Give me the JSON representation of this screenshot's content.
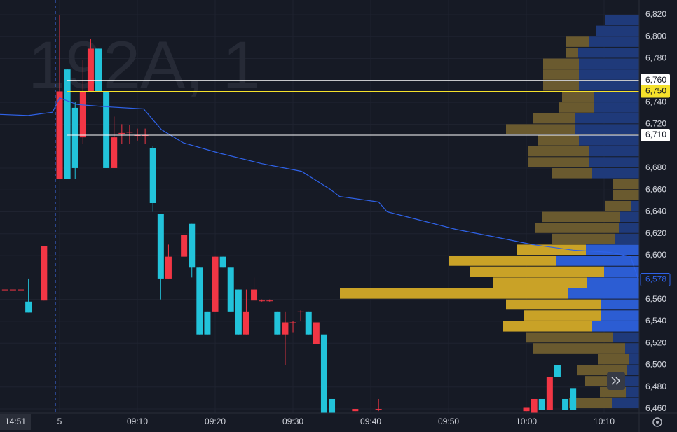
{
  "chart_data": {
    "type": "candlestick",
    "watermark": "192A, 1",
    "time_label": "14:51",
    "xlim": [
      -7.66,
      74.5
    ],
    "ylim": [
      6456.2,
      6833.4
    ],
    "grid": true,
    "xticks": [
      {
        "value": 0,
        "label": "5"
      },
      {
        "value": 10,
        "label": "09:10"
      },
      {
        "value": 20,
        "label": "09:20"
      },
      {
        "value": 30,
        "label": "09:30"
      },
      {
        "value": 40,
        "label": "09:40"
      },
      {
        "value": 50,
        "label": "09:50"
      },
      {
        "value": 60,
        "label": "10:00"
      },
      {
        "value": 70,
        "label": "10:10"
      }
    ],
    "yticks": [
      {
        "value": 6820,
        "label": "6,820"
      },
      {
        "value": 6800,
        "label": "6,800"
      },
      {
        "value": 6780,
        "label": "6,780"
      },
      {
        "value": 6740,
        "label": "6,740"
      },
      {
        "value": 6720,
        "label": "6,720"
      },
      {
        "value": 6680,
        "label": "6,680"
      },
      {
        "value": 6660,
        "label": "6,660"
      },
      {
        "value": 6640,
        "label": "6,640"
      },
      {
        "value": 6620,
        "label": "6,620"
      },
      {
        "value": 6600,
        "label": "6,600"
      },
      {
        "value": 6560,
        "label": "6,560"
      },
      {
        "value": 6540,
        "label": "6,540"
      },
      {
        "value": 6520,
        "label": "6,520"
      },
      {
        "value": 6500,
        "label": "6,500"
      },
      {
        "value": 6480,
        "label": "6,480"
      },
      {
        "value": 6460,
        "label": "6,460"
      }
    ],
    "up_color": "#f23645",
    "down_color": "#22c3da",
    "candles": [
      {
        "time": -7,
        "open": 6569,
        "high": 6569,
        "low": 6569,
        "close": 6569
      },
      {
        "time": -6,
        "open": 6569,
        "high": 6569,
        "low": 6569,
        "close": 6569
      },
      {
        "time": -5,
        "open": 6569,
        "high": 6569,
        "low": 6569,
        "close": 6569
      },
      {
        "time": -4,
        "open": 6558,
        "high": 6579,
        "low": 6548,
        "close": 6548
      },
      {
        "time": -2,
        "open": 6559,
        "high": 6609,
        "low": 6559,
        "close": 6609
      },
      {
        "time": 0,
        "open": 6670,
        "high": 6820,
        "low": 6670,
        "close": 6750
      },
      {
        "time": 1,
        "open": 6770,
        "high": 6770,
        "low": 6670,
        "close": 6670
      },
      {
        "time": 2,
        "open": 6735,
        "high": 6740,
        "low": 6670,
        "close": 6680
      },
      {
        "time": 3,
        "open": 6708,
        "high": 6779,
        "low": 6702,
        "close": 6750
      },
      {
        "time": 4,
        "open": 6750,
        "high": 6798,
        "low": 6750,
        "close": 6789
      },
      {
        "time": 5,
        "open": 6789,
        "high": 6789,
        "low": 6750,
        "close": 6750
      },
      {
        "time": 6,
        "open": 6750,
        "high": 6750,
        "low": 6680,
        "close": 6680
      },
      {
        "time": 7,
        "open": 6680,
        "high": 6727,
        "low": 6680,
        "close": 6708
      },
      {
        "time": 8,
        "open": 6712,
        "high": 6720,
        "low": 6702,
        "close": 6712
      },
      {
        "time": 9,
        "open": 6713,
        "high": 6719,
        "low": 6702,
        "close": 6713
      },
      {
        "time": 10,
        "open": 6710,
        "high": 6716,
        "low": 6705,
        "close": 6710
      },
      {
        "time": 11,
        "open": 6710,
        "high": 6716,
        "low": 6702,
        "close": 6710
      },
      {
        "time": 12,
        "open": 6698,
        "high": 6700,
        "low": 6640,
        "close": 6648
      },
      {
        "time": 13,
        "open": 6638,
        "high": 6638,
        "low": 6560,
        "close": 6579
      },
      {
        "time": 14,
        "open": 6579,
        "high": 6610,
        "low": 6579,
        "close": 6599
      },
      {
        "time": 16,
        "open": 6599,
        "high": 6619,
        "low": 6599,
        "close": 6619
      },
      {
        "time": 17,
        "open": 6629,
        "high": 6629,
        "low": 6580,
        "close": 6589
      },
      {
        "time": 18,
        "open": 6589,
        "high": 6589,
        "low": 6528,
        "close": 6528
      },
      {
        "time": 19,
        "open": 6549,
        "high": 6549,
        "low": 6528,
        "close": 6528
      },
      {
        "time": 20,
        "open": 6549,
        "high": 6599,
        "low": 6549,
        "close": 6599
      },
      {
        "time": 21,
        "open": 6599,
        "high": 6599,
        "low": 6589,
        "close": 6589
      },
      {
        "time": 22,
        "open": 6589,
        "high": 6589,
        "low": 6549,
        "close": 6549
      },
      {
        "time": 23,
        "open": 6569,
        "high": 6569,
        "low": 6528,
        "close": 6528
      },
      {
        "time": 24,
        "open": 6528,
        "high": 6569,
        "low": 6528,
        "close": 6549
      },
      {
        "time": 25,
        "open": 6559,
        "high": 6580,
        "low": 6559,
        "close": 6569
      },
      {
        "time": 26,
        "open": 6559,
        "high": 6560,
        "low": 6558,
        "close": 6559
      },
      {
        "time": 27,
        "open": 6559,
        "high": 6560,
        "low": 6558,
        "close": 6559
      },
      {
        "time": 28,
        "open": 6549,
        "high": 6549,
        "low": 6528,
        "close": 6528
      },
      {
        "time": 29,
        "open": 6528,
        "high": 6549,
        "low": 6500,
        "close": 6539
      },
      {
        "time": 30,
        "open": 6539,
        "high": 6540,
        "low": 6530,
        "close": 6539
      },
      {
        "time": 31,
        "open": 6549,
        "high": 6550,
        "low": 6540,
        "close": 6549
      },
      {
        "time": 32,
        "open": 6549,
        "high": 6549,
        "low": 6528,
        "close": 6528
      },
      {
        "time": 33,
        "open": 6519,
        "high": 6539,
        "low": 6519,
        "close": 6539
      },
      {
        "time": 34,
        "open": 6528,
        "high": 6528,
        "low": 6455,
        "close": 6455
      },
      {
        "time": 35,
        "open": 6469,
        "high": 6469,
        "low": 6455,
        "close": 6455
      },
      {
        "time": 38,
        "open": 6458,
        "high": 6460,
        "low": 6458,
        "close": 6460
      },
      {
        "time": 41,
        "open": 6460,
        "high": 6469,
        "low": 6458,
        "close": 6460
      },
      {
        "time": 60,
        "open": 6458,
        "high": 6461,
        "low": 6458,
        "close": 6461
      },
      {
        "time": 61,
        "open": 6456,
        "high": 6469,
        "low": 6456,
        "close": 6469
      },
      {
        "time": 62,
        "open": 6469,
        "high": 6469,
        "low": 6459,
        "close": 6459
      },
      {
        "time": 63,
        "open": 6459,
        "high": 6489,
        "low": 6459,
        "close": 6489
      },
      {
        "time": 64,
        "open": 6500,
        "high": 6500,
        "low": 6489,
        "close": 6489
      },
      {
        "time": 65,
        "open": 6469,
        "high": 6469,
        "low": 6459,
        "close": 6459
      },
      {
        "time": 66,
        "open": 6479,
        "high": 6479,
        "low": 6459,
        "close": 6459
      }
    ],
    "vwap": {
      "color": "#2f62e8",
      "x": [
        -7.66,
        -4.05,
        -0.9,
        0,
        2.25,
        5.86,
        10.8,
        13.1,
        15.9,
        20.3,
        26,
        31.1,
        34.7,
        36,
        41,
        42.1,
        46,
        50.9,
        56,
        60.8,
        66,
        70.7,
        73.4,
        74.5
      ],
      "values": [
        6729,
        6728,
        6731,
        6744,
        6738,
        6736,
        6734,
        6715,
        6703,
        6694,
        6684,
        6677,
        6661,
        6654,
        6649,
        6640,
        6633,
        6624,
        6617,
        6610,
        6605,
        6603,
        6599,
        6576
      ]
    },
    "price_lines": [
      {
        "value": 6760,
        "label": "6,760",
        "color": "#ffffff"
      },
      {
        "value": 6750,
        "label": "6,750",
        "color": "#f5e12b"
      },
      {
        "value": 6710,
        "label": "6,710",
        "color": "#ffffff"
      }
    ],
    "last_price": {
      "value": 6578,
      "label": "6,578",
      "color": "#2f62e8"
    },
    "volume_profile": {
      "buy_color": "#2c5dd3",
      "sell_color": "#c9a227",
      "buy_muted": "#1f3a7a",
      "sell_muted": "#6a5a2f",
      "value_area": [
        6530,
        6600
      ],
      "rows": [
        {
          "price": 6810,
          "buy": 49,
          "sell": 0
        },
        {
          "price": 6800,
          "buy": 62,
          "sell": 0
        },
        {
          "price": 6790,
          "buy": 72,
          "sell": 32
        },
        {
          "price": 6780,
          "buy": 87,
          "sell": 17
        },
        {
          "price": 6770,
          "buy": 86,
          "sell": 51
        },
        {
          "price": 6760,
          "buy": 86,
          "sell": 51
        },
        {
          "price": 6750,
          "buy": 86,
          "sell": 51
        },
        {
          "price": 6740,
          "buy": 64,
          "sell": 46
        },
        {
          "price": 6730,
          "buy": 64,
          "sell": 51
        },
        {
          "price": 6720,
          "buy": 92,
          "sell": 60
        },
        {
          "price": 6710,
          "buy": 92,
          "sell": 98
        },
        {
          "price": 6700,
          "buy": 86,
          "sell": 58
        },
        {
          "price": 6690,
          "buy": 72,
          "sell": 86
        },
        {
          "price": 6680,
          "buy": 72,
          "sell": 86
        },
        {
          "price": 6670,
          "buy": 67,
          "sell": 58
        },
        {
          "price": 6660,
          "buy": 0,
          "sell": 37
        },
        {
          "price": 6650,
          "buy": 0,
          "sell": 37
        },
        {
          "price": 6640,
          "buy": 12,
          "sell": 37
        },
        {
          "price": 6630,
          "buy": 27,
          "sell": 112
        },
        {
          "price": 6620,
          "buy": 29,
          "sell": 120
        },
        {
          "price": 6610,
          "buy": 35,
          "sell": 90
        },
        {
          "price": 6600,
          "buy": 76,
          "sell": 98
        },
        {
          "price": 6590,
          "buy": 118,
          "sell": 154
        },
        {
          "price": 6580,
          "buy": 50,
          "sell": 192
        },
        {
          "price": 6570,
          "buy": 74,
          "sell": 134
        },
        {
          "price": 6560,
          "buy": 102,
          "sell": 325
        },
        {
          "price": 6550,
          "buy": 54,
          "sell": 136
        },
        {
          "price": 6540,
          "buy": 54,
          "sell": 110
        },
        {
          "price": 6530,
          "buy": 67,
          "sell": 127
        },
        {
          "price": 6520,
          "buy": 38,
          "sell": 123
        },
        {
          "price": 6510,
          "buy": 20,
          "sell": 132
        },
        {
          "price": 6500,
          "buy": 14,
          "sell": 45
        },
        {
          "price": 6490,
          "buy": 17,
          "sell": 72
        },
        {
          "price": 6480,
          "buy": 44,
          "sell": 33
        },
        {
          "price": 6470,
          "buy": 19,
          "sell": 37
        },
        {
          "price": 6460,
          "buy": 39,
          "sell": 61
        }
      ]
    }
  }
}
